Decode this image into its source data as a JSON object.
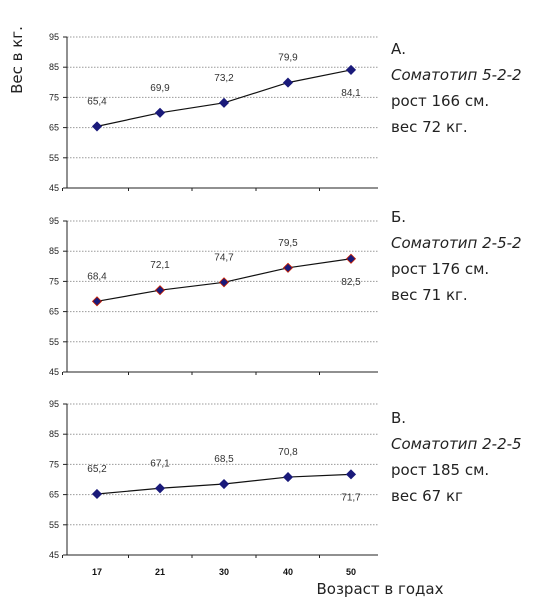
{
  "chart_data": [
    {
      "type": "line",
      "categories": [
        "17",
        "21",
        "30",
        "40",
        "50"
      ],
      "values": [
        65.4,
        69.9,
        73.2,
        79.9,
        84.1
      ],
      "data_labels": [
        "65,4",
        "69,9",
        "73,2",
        "79,9",
        "84,1"
      ],
      "ylim": [
        45,
        95
      ],
      "y_ticks": [
        "45",
        "55",
        "65",
        "75",
        "85",
        "95"
      ],
      "grid": true,
      "marker_color": "#1a1a7a",
      "marker_edge": "#1a1a7a",
      "note": [
        "А.",
        "Соматотип 5-2-2",
        "рост 166 см.",
        "вес 72 кг."
      ]
    },
    {
      "type": "line",
      "categories": [
        "17",
        "21",
        "30",
        "40",
        "50"
      ],
      "values": [
        68.4,
        72.1,
        74.7,
        79.5,
        82.5
      ],
      "data_labels": [
        "68,4",
        "72,1",
        "74,7",
        "79,5",
        "82,5"
      ],
      "ylim": [
        45,
        95
      ],
      "y_ticks": [
        "45",
        "55",
        "65",
        "75",
        "85",
        "95"
      ],
      "grid": true,
      "marker_color": "#1a1a7a",
      "marker_edge": "#cc2200",
      "note": [
        "Б.",
        "Соматотип 2-5-2",
        "рост 176 см.",
        "вес 71 кг."
      ]
    },
    {
      "type": "line",
      "categories": [
        "17",
        "21",
        "30",
        "40",
        "50"
      ],
      "values": [
        65.2,
        67.1,
        68.5,
        70.8,
        71.7
      ],
      "data_labels": [
        "65,2",
        "67,1",
        "68,5",
        "70,8",
        "71,7"
      ],
      "ylim": [
        45,
        95
      ],
      "y_ticks": [
        "45",
        "55",
        "65",
        "75",
        "85",
        "95"
      ],
      "grid": true,
      "marker_color": "#1a1a7a",
      "marker_edge": "#1a1a7a",
      "note": [
        "В.",
        "Соматотип 2-2-5",
        "рост 185 см.",
        "вес 67 кг"
      ]
    }
  ],
  "ylabel": "Вес в кг.",
  "xlabel": "Возраст в годах",
  "x_ticks": [
    "17",
    "21",
    "30",
    "40",
    "50"
  ]
}
